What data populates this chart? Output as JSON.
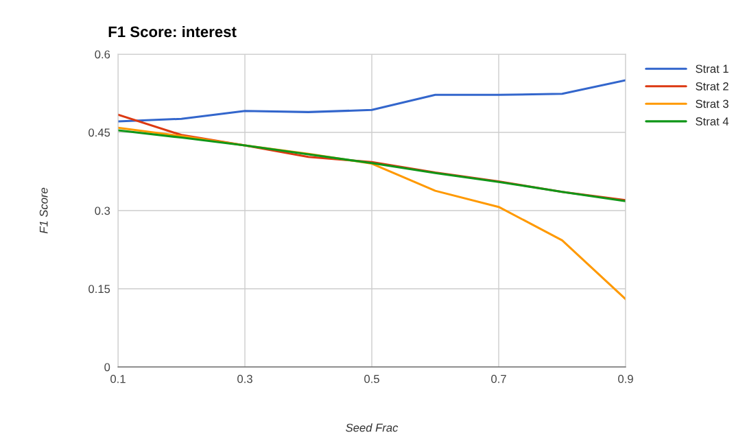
{
  "chart_data": {
    "type": "line",
    "title": "F1 Score: interest",
    "xlabel": "Seed Frac",
    "ylabel": "F1 Score",
    "x": [
      0.1,
      0.2,
      0.3,
      0.4,
      0.5,
      0.6,
      0.7,
      0.8,
      0.9
    ],
    "series": [
      {
        "name": "Strat 1",
        "color": "#3366cc",
        "values": [
          0.471,
          0.476,
          0.491,
          0.489,
          0.493,
          0.522,
          0.522,
          0.524,
          0.55
        ]
      },
      {
        "name": "Strat 2",
        "color": "#dc3912",
        "values": [
          0.484,
          0.445,
          0.425,
          0.403,
          0.393,
          0.373,
          0.356,
          0.336,
          0.32
        ]
      },
      {
        "name": "Strat 3",
        "color": "#ff9900",
        "values": [
          0.459,
          0.443,
          0.425,
          0.409,
          0.39,
          0.338,
          0.307,
          0.243,
          0.13
        ]
      },
      {
        "name": "Strat 4",
        "color": "#109618",
        "values": [
          0.454,
          0.44,
          0.425,
          0.408,
          0.391,
          0.372,
          0.355,
          0.336,
          0.318
        ]
      }
    ],
    "xlim": [
      0.1,
      0.9
    ],
    "xticks": [
      0.1,
      0.3,
      0.5,
      0.7,
      0.9
    ],
    "ylim": [
      0,
      0.6
    ],
    "yticks": [
      0,
      0.15,
      0.3,
      0.45,
      0.6
    ],
    "grid": true,
    "legend": "right",
    "marker": "none",
    "line_style": "solid"
  }
}
